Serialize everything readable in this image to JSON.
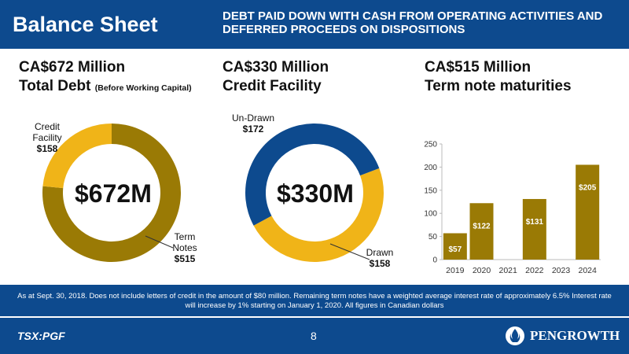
{
  "header": {
    "title": "Balance Sheet",
    "subtitle": "DEBT PAID DOWN WITH CASH FROM OPERATING ACTIVITIES AND DEFERRED PROCEEDS ON DISPOSITIONS"
  },
  "columns": {
    "total_debt": {
      "line1": "CA$672 Million",
      "line2": "Total Debt",
      "note": "(Before Working Capital)"
    },
    "credit_facility": {
      "line1": "CA$330 Million",
      "line2": "Credit Facility"
    },
    "term_notes": {
      "line1": "CA$515 Million",
      "line2": "Term note maturities"
    }
  },
  "donut1": {
    "center": "$672M",
    "credit_label": "Credit Facility",
    "credit_value": "$158",
    "term_label": "Term Notes",
    "term_value": "$515"
  },
  "donut2": {
    "center": "$330M",
    "undrawn_label": "Un-Drawn",
    "undrawn_value": "$172",
    "drawn_label": "Drawn",
    "drawn_value": "$158"
  },
  "footnote": "As at Sept. 30, 2018. Does not include letters of credit in the amount of $80 million. Remaining term notes have a weighted average interest rate of approximately 6.5% Interest rate will increase by 1% starting on January 1, 2020. All figures in Canadian dollars",
  "footer": {
    "ticker": "TSX:PGF",
    "page": "8",
    "logo_text": "PENGROWTH"
  },
  "colors": {
    "brand_blue": "#0d4a8e",
    "gold": "#f0b418",
    "dark_gold": "#9a7a05"
  },
  "chart_data": [
    {
      "type": "pie",
      "categories": [
        "Credit Facility",
        "Term Notes"
      ],
      "values": [
        158,
        515
      ],
      "colors": [
        "#f0b418",
        "#9a7a05"
      ]
    },
    {
      "type": "pie",
      "categories": [
        "Un-Drawn",
        "Drawn"
      ],
      "values": [
        172,
        158
      ],
      "colors": [
        "#0d4a8e",
        "#f0b418"
      ]
    },
    {
      "type": "bar",
      "categories": [
        "2019",
        "2020",
        "2021",
        "2022",
        "2023",
        "2024"
      ],
      "values": [
        57,
        122,
        0,
        131,
        0,
        205
      ],
      "data_labels": [
        "$57",
        "$122",
        "",
        "$131",
        "",
        "$205"
      ],
      "ylim": [
        0,
        250
      ],
      "yticks": [
        0,
        50,
        100,
        150,
        200,
        250
      ],
      "color": "#9a7a05"
    }
  ]
}
